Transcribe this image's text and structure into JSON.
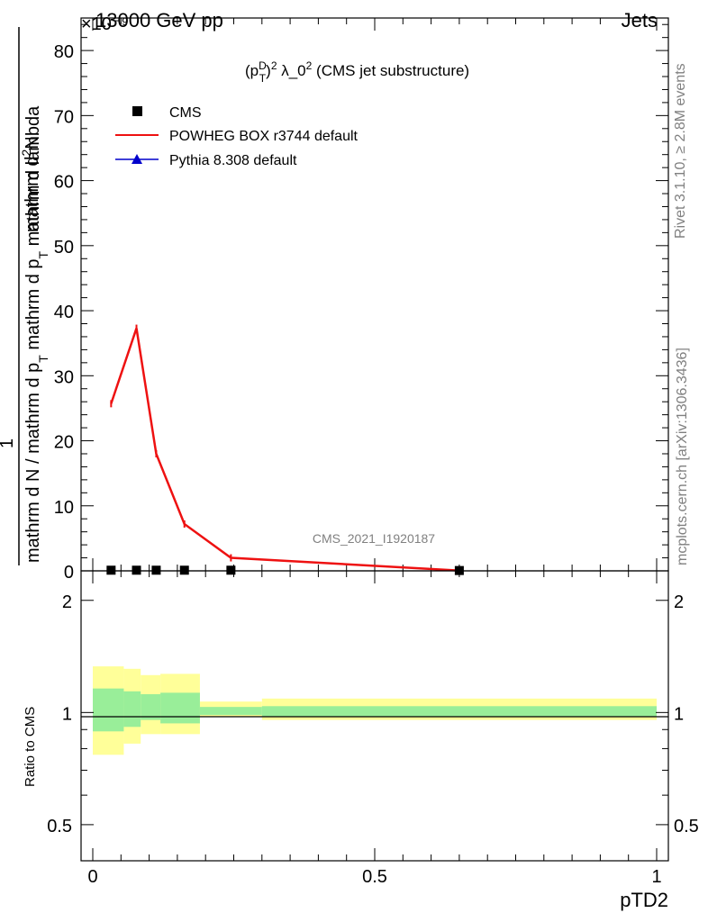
{
  "header": {
    "left": "13000 GeV pp",
    "right": "Jets",
    "exponent": "×10⁻⁹"
  },
  "side_labels": {
    "rivet": "Rivet 3.1.10, ≥ 2.8M events",
    "mcplots": "mcplots.cern.ch [arXiv:1306.3436]"
  },
  "main_plot": {
    "title": "(p_T^D)^2 λ_0^2 (CMS jet substructure)",
    "title_parts": {
      "a": "(p",
      "sub": "T",
      "sup": "D",
      "b": ")",
      "sup2": "2",
      "c": " λ_0",
      "sup3": "2",
      "d": " (CMS jet substructure)"
    },
    "ylabel": {
      "numerator": "mathrm d²N",
      "numerator_parts": {
        "a": "mathrm d",
        "sup": "2",
        "b": "N"
      },
      "denominator_parts": {
        "a": "mathrm d N / mathrm d p",
        "sub1": "T",
        "b": " mathrm d p",
        "sub2": "T",
        "c": " mathrm d lambda"
      },
      "prefix": "1"
    },
    "watermark": "CMS_2021_I1920187",
    "yticks": [
      "0",
      "10",
      "20",
      "30",
      "40",
      "50",
      "60",
      "70",
      "80"
    ]
  },
  "ratio_plot": {
    "ylabel": "Ratio to CMS",
    "yticks": [
      "0.5",
      "1",
      "2"
    ]
  },
  "xaxis": {
    "label": "pTD2",
    "ticks": [
      "0",
      "0.5",
      "1"
    ]
  },
  "legend": [
    {
      "name": "CMS",
      "color": "#000000",
      "marker": "square"
    },
    {
      "name": "POWHEG BOX r3744 default",
      "color": "#ee1111",
      "marker": "line"
    },
    {
      "name": "Pythia 8.308 default",
      "color": "#0000cc",
      "marker": "triangle"
    }
  ],
  "chart_data": {
    "type": "line",
    "xlabel": "pTD2",
    "ylabel": "1/N dN/dλ",
    "xlim": [
      0,
      1
    ],
    "ylim": [
      0,
      85
    ],
    "y_multiplier": "1e-9",
    "series": [
      {
        "name": "CMS",
        "points": [
          [
            0.0325,
            0.1
          ],
          [
            0.0775,
            0.1
          ],
          [
            0.1125,
            0.1
          ],
          [
            0.1625,
            0.1
          ],
          [
            0.245,
            0.1
          ],
          [
            0.65,
            0.05
          ]
        ]
      },
      {
        "name": "POWHEG BOX r3744 default",
        "points": [
          [
            0.0325,
            25.7
          ],
          [
            0.0775,
            37.3
          ],
          [
            0.1125,
            18.0
          ],
          [
            0.1625,
            7.2
          ],
          [
            0.245,
            2.0
          ],
          [
            0.65,
            0.05
          ]
        ]
      },
      {
        "name": "Pythia 8.308 default",
        "points": []
      }
    ],
    "ratio": {
      "ylim": [
        0.4,
        2.4
      ],
      "scale": "log",
      "bins": [
        [
          0.0,
          0.055
        ],
        [
          0.055,
          0.085
        ],
        [
          0.085,
          0.12
        ],
        [
          0.12,
          0.19
        ],
        [
          0.19,
          0.3
        ],
        [
          0.3,
          1.0
        ]
      ],
      "inner_band": [
        [
          0.89,
          1.16
        ],
        [
          0.915,
          1.14
        ],
        [
          0.955,
          1.12
        ],
        [
          0.935,
          1.13
        ],
        [
          0.985,
          1.035
        ],
        [
          0.975,
          1.04
        ]
      ],
      "outer_band": [
        [
          0.77,
          1.33
        ],
        [
          0.825,
          1.31
        ],
        [
          0.875,
          1.26
        ],
        [
          0.875,
          1.27
        ],
        [
          0.975,
          1.07
        ],
        [
          0.955,
          1.09
        ]
      ]
    }
  }
}
